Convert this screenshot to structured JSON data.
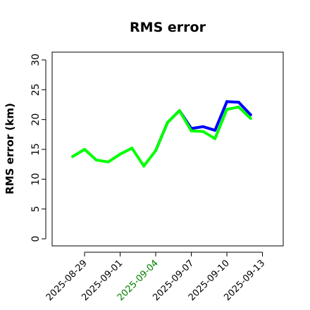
{
  "chart_data": {
    "type": "line",
    "title": "RMS error",
    "xlabel": "",
    "ylabel": "RMS error (km)",
    "ylim": [
      0,
      30
    ],
    "xlim": [
      "2025-08-26",
      "2025-09-15"
    ],
    "yticks": [
      "0",
      "5",
      "10",
      "15",
      "20",
      "25",
      "30"
    ],
    "xticks": [
      {
        "label": "2025-08-29",
        "date": "2025-08-29",
        "color": "#000000"
      },
      {
        "label": "2025-09-01",
        "date": "2025-09-01",
        "color": "#000000"
      },
      {
        "label": "2025-09-04",
        "date": "2025-09-04",
        "color": "#008000"
      },
      {
        "label": "2025-09-07",
        "date": "2025-09-07",
        "color": "#000000"
      },
      {
        "label": "2025-09-10",
        "date": "2025-09-10",
        "color": "#000000"
      },
      {
        "label": "2025-09-13",
        "date": "2025-09-13",
        "color": "#000000"
      }
    ],
    "grid": false,
    "legend": "none",
    "series": [
      {
        "color": "#0000ff",
        "x": [
          "2025-09-04",
          "2025-09-05",
          "2025-09-06",
          "2025-09-07",
          "2025-09-08",
          "2025-09-09",
          "2025-09-10",
          "2025-09-11",
          "2025-09-12"
        ],
        "values": [
          14.8,
          19.5,
          21.5,
          18.5,
          18.8,
          18.2,
          23.0,
          22.9,
          20.8
        ]
      },
      {
        "color": "#00ff00",
        "x": [
          "2025-08-28",
          "2025-08-29",
          "2025-08-30",
          "2025-08-31",
          "2025-09-01",
          "2025-09-02",
          "2025-09-03",
          "2025-09-04",
          "2025-09-05",
          "2025-09-06",
          "2025-09-07",
          "2025-09-08",
          "2025-09-09",
          "2025-09-10",
          "2025-09-11",
          "2025-09-12"
        ],
        "values": [
          13.8,
          15.0,
          13.2,
          12.9,
          14.2,
          15.2,
          12.2,
          14.8,
          19.5,
          21.5,
          18.1,
          18.0,
          16.8,
          21.7,
          22.1,
          20.2
        ]
      }
    ]
  }
}
